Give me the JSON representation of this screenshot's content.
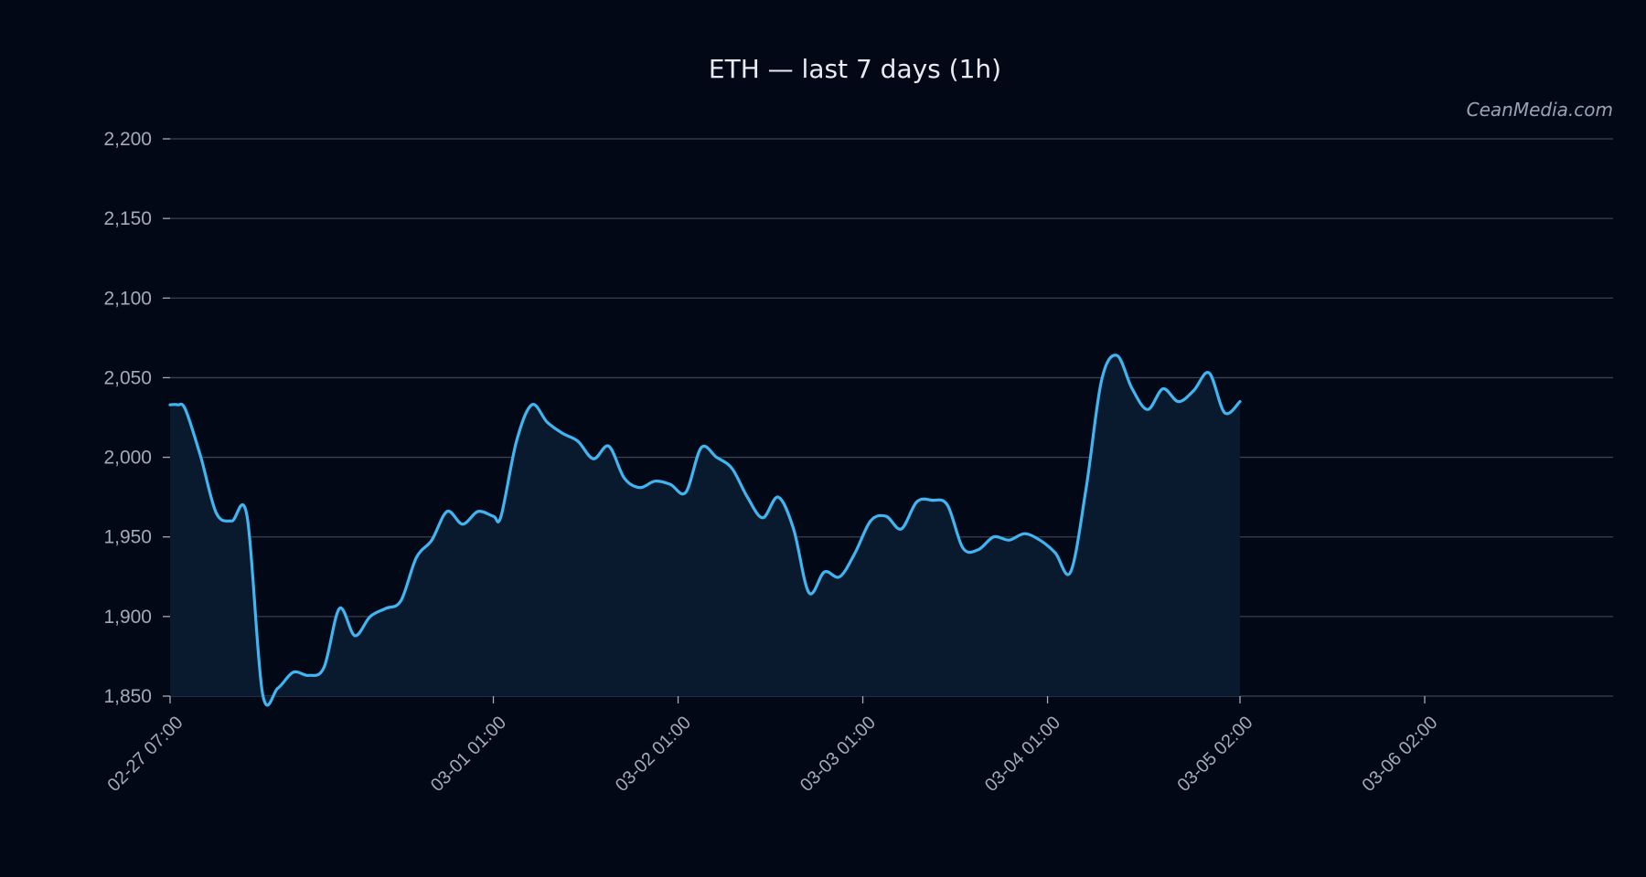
{
  "watermark": "CeanMedia.com",
  "colors": {
    "background": "#030817",
    "line": "#3fb6f2",
    "area": "#0a1a2e",
    "grid": "#3a4150",
    "text": "#a3abb8",
    "title": "#e8ecf2"
  },
  "chart_data": {
    "type": "area",
    "title": "ETH — last 7 days (1h)",
    "xlabel": "",
    "ylabel": "",
    "ylim": [
      1850,
      2200
    ],
    "grid": true,
    "interval": "1h",
    "y_ticks": [
      {
        "value": 1850,
        "label": "1,850"
      },
      {
        "value": 1900,
        "label": "1,900"
      },
      {
        "value": 1950,
        "label": "1,950"
      },
      {
        "value": 2000,
        "label": "2,000"
      },
      {
        "value": 2050,
        "label": "2,050"
      },
      {
        "value": 2100,
        "label": "2,100"
      },
      {
        "value": 2150,
        "label": "2,150"
      },
      {
        "value": 2200,
        "label": "2,200"
      }
    ],
    "x_ticks": [
      {
        "value": "2025-02-27T07:00",
        "label": "02-27 07:00"
      },
      {
        "value": "2025-03-01T01:00",
        "label": "03-01 01:00"
      },
      {
        "value": "2025-03-02T01:00",
        "label": "03-02 01:00"
      },
      {
        "value": "2025-03-03T01:00",
        "label": "03-03 01:00"
      },
      {
        "value": "2025-03-04T01:00",
        "label": "03-04 01:00"
      },
      {
        "value": "2025-03-05T02:00",
        "label": "03-05 02:00"
      },
      {
        "value": "2025-03-06T02:00",
        "label": "03-06 02:00"
      }
    ],
    "xlim": [
      "2025-02-27T07:00",
      "2025-03-06T02:00"
    ],
    "points": [
      [
        "2025-02-27T07:00",
        2033
      ],
      [
        "2025-02-27T08:00",
        2033
      ],
      [
        "2025-02-27T09:00",
        2030
      ],
      [
        "2025-02-27T11:00",
        2000
      ],
      [
        "2025-02-27T13:00",
        1965
      ],
      [
        "2025-02-27T15:00",
        1960
      ],
      [
        "2025-02-27T17:00",
        1963
      ],
      [
        "2025-02-27T19:00",
        1852
      ],
      [
        "2025-02-27T21:00",
        1855
      ],
      [
        "2025-02-27T23:00",
        1865
      ],
      [
        "2025-02-28T01:00",
        1863
      ],
      [
        "2025-02-28T03:00",
        1868
      ],
      [
        "2025-02-28T05:00",
        1905
      ],
      [
        "2025-02-28T07:00",
        1888
      ],
      [
        "2025-02-28T09:00",
        1900
      ],
      [
        "2025-02-28T11:00",
        1905
      ],
      [
        "2025-02-28T13:00",
        1910
      ],
      [
        "2025-02-28T15:00",
        1937
      ],
      [
        "2025-02-28T17:00",
        1948
      ],
      [
        "2025-02-28T19:00",
        1966
      ],
      [
        "2025-02-28T21:00",
        1958
      ],
      [
        "2025-02-28T23:00",
        1966
      ],
      [
        "2025-03-01T01:00",
        1963
      ],
      [
        "2025-03-01T02:00",
        1963
      ],
      [
        "2025-03-01T04:00",
        2010
      ],
      [
        "2025-03-01T06:00",
        2033
      ],
      [
        "2025-03-01T08:00",
        2022
      ],
      [
        "2025-03-01T10:00",
        2015
      ],
      [
        "2025-03-01T12:00",
        2010
      ],
      [
        "2025-03-01T14:00",
        1999
      ],
      [
        "2025-03-01T16:00",
        2007
      ],
      [
        "2025-03-01T18:00",
        1987
      ],
      [
        "2025-03-01T20:00",
        1981
      ],
      [
        "2025-03-01T22:00",
        1985
      ],
      [
        "2025-03-02T00:00",
        1983
      ],
      [
        "2025-03-02T02:00",
        1978
      ],
      [
        "2025-03-02T04:00",
        2006
      ],
      [
        "2025-03-02T06:00",
        2000
      ],
      [
        "2025-03-02T08:00",
        1993
      ],
      [
        "2025-03-02T10:00",
        1975
      ],
      [
        "2025-03-02T12:00",
        1962
      ],
      [
        "2025-03-02T14:00",
        1975
      ],
      [
        "2025-03-02T16:00",
        1955
      ],
      [
        "2025-03-02T18:00",
        1915
      ],
      [
        "2025-03-02T20:00",
        1928
      ],
      [
        "2025-03-02T22:00",
        1925
      ],
      [
        "2025-03-03T00:00",
        1940
      ],
      [
        "2025-03-03T02:00",
        1960
      ],
      [
        "2025-03-03T04:00",
        1963
      ],
      [
        "2025-03-03T06:00",
        1955
      ],
      [
        "2025-03-03T08:00",
        1972
      ],
      [
        "2025-03-03T10:00",
        1973
      ],
      [
        "2025-03-03T12:00",
        1970
      ],
      [
        "2025-03-03T14:00",
        1943
      ],
      [
        "2025-03-03T16:00",
        1942
      ],
      [
        "2025-03-03T18:00",
        1950
      ],
      [
        "2025-03-03T20:00",
        1948
      ],
      [
        "2025-03-03T22:00",
        1952
      ],
      [
        "2025-03-04T00:00",
        1948
      ],
      [
        "2025-03-04T02:00",
        1940
      ],
      [
        "2025-03-04T04:00",
        1928
      ],
      [
        "2025-03-04T06:00",
        1980
      ],
      [
        "2025-03-04T08:00",
        2048
      ],
      [
        "2025-03-04T10:00",
        2064
      ],
      [
        "2025-03-04T12:00",
        2043
      ],
      [
        "2025-03-04T14:00",
        2030
      ],
      [
        "2025-03-04T16:00",
        2043
      ],
      [
        "2025-03-04T18:00",
        2035
      ],
      [
        "2025-03-04T20:00",
        2042
      ],
      [
        "2025-03-04T22:00",
        2053
      ],
      [
        "2025-03-05T00:00",
        2028
      ],
      [
        "2025-03-05T02:00",
        2035
      ]
    ]
  }
}
